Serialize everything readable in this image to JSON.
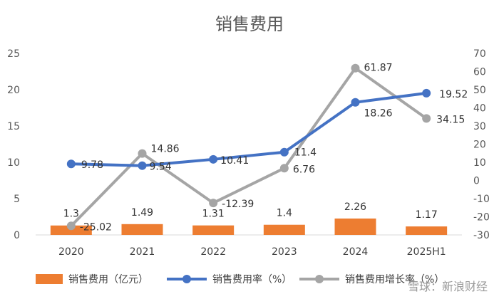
{
  "chart_data": {
    "type": "bar",
    "title": "销售费用",
    "categories": [
      "2020",
      "2021",
      "2022",
      "2023",
      "2024",
      "2025H1"
    ],
    "series": [
      {
        "name": "销售费用（亿元）",
        "type": "bar",
        "axis": "left",
        "color": "#ED7D31",
        "values": [
          1.3,
          1.49,
          1.31,
          1.4,
          2.26,
          1.17
        ],
        "labels": [
          "1.3",
          "1.49",
          "1.31",
          "1.4",
          "2.26",
          "1.17"
        ]
      },
      {
        "name": "销售费用率（%）",
        "type": "line",
        "axis": "left",
        "color": "#4472C4",
        "values": [
          9.78,
          9.54,
          10.41,
          11.4,
          18.26,
          19.52
        ],
        "labels": [
          "9.78",
          "9.54",
          "10.41",
          "11.4",
          "18.26",
          "19.52"
        ]
      },
      {
        "name": "销售费用增长率（%）",
        "type": "line",
        "axis": "right",
        "color": "#A5A5A5",
        "values": [
          -25.02,
          14.86,
          -12.39,
          6.76,
          61.87,
          34.15
        ],
        "labels": [
          "-25.02",
          "14.86",
          "-12.39",
          "6.76",
          "61.87",
          "34.15"
        ]
      }
    ],
    "y_left": {
      "min": 0,
      "max": 25,
      "step": 5,
      "ticks": [
        "0",
        "5",
        "10",
        "15",
        "20",
        "25"
      ]
    },
    "y_right": {
      "min": -30,
      "max": 70,
      "step": 10,
      "ticks": [
        "-30",
        "-20",
        "-10",
        "0",
        "10",
        "20",
        "30",
        "40",
        "50",
        "60",
        "70"
      ]
    },
    "grid": false,
    "legend": "bottom"
  },
  "watermark": "雪球：新浪财经"
}
